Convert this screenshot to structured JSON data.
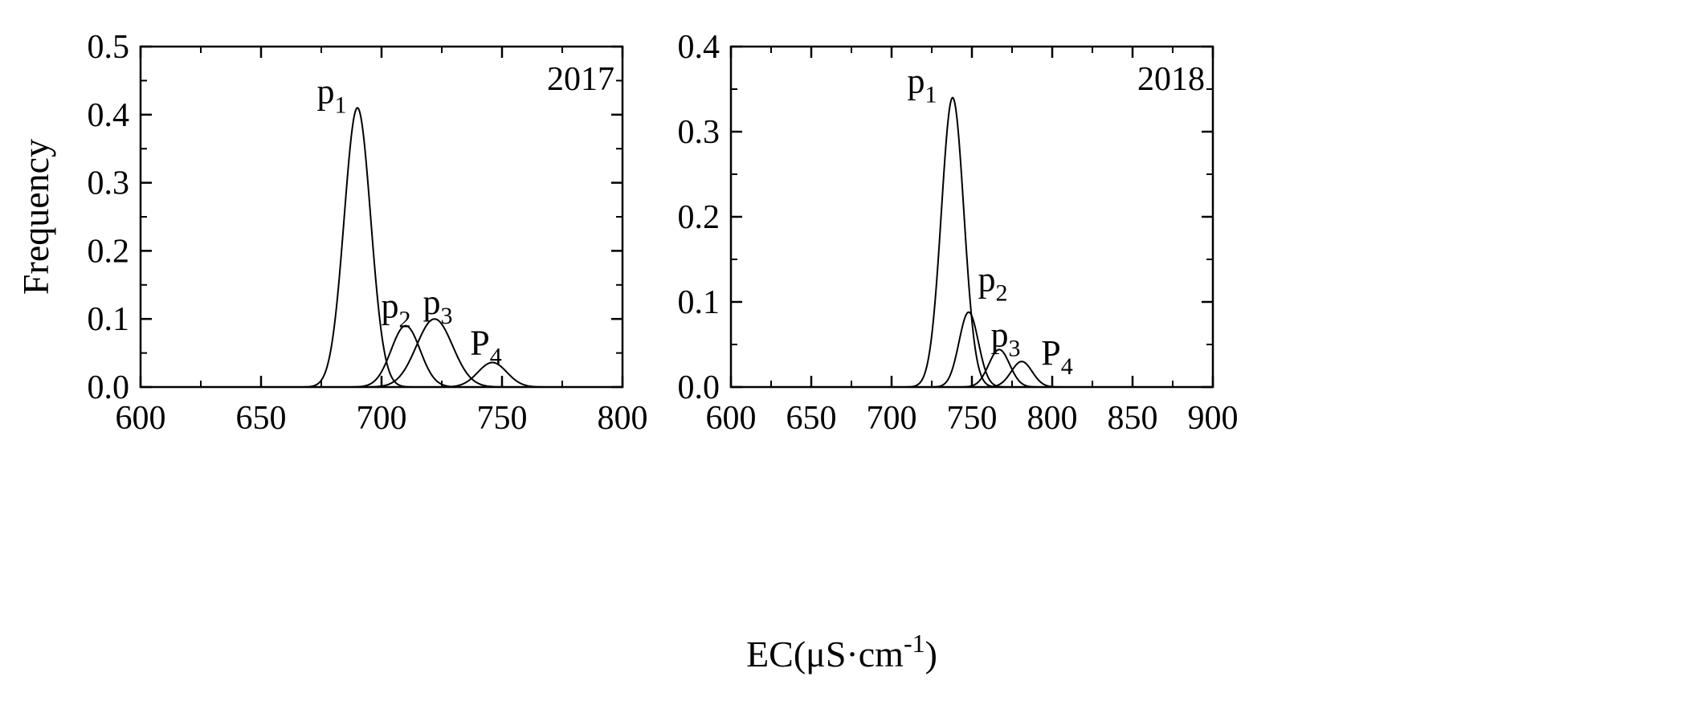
{
  "chart_data": [
    {
      "type": "line",
      "panel": "left",
      "year_label": "2017",
      "xlim": [
        600,
        800
      ],
      "ylim": [
        0,
        0.5
      ],
      "x_ticks": [
        "600",
        "650",
        "700",
        "750",
        "800"
      ],
      "y_ticks": [
        "0.0",
        "0.1",
        "0.2",
        "0.3",
        "0.4",
        "0.5"
      ],
      "ylabel": "Frequency",
      "series": [
        {
          "peak_label": "p",
          "sub": "1",
          "mean": 690,
          "sd": 5.5,
          "peak": 0.41
        },
        {
          "peak_label": "p",
          "sub": "2",
          "mean": 710,
          "sd": 6.0,
          "peak": 0.09
        },
        {
          "peak_label": "p",
          "sub": "3",
          "mean": 722,
          "sd": 7.5,
          "peak": 0.1
        },
        {
          "peak_label": "P",
          "sub": "4",
          "mean": 746,
          "sd": 6.0,
          "peak": 0.036
        }
      ]
    },
    {
      "type": "line",
      "panel": "right",
      "year_label": "2018",
      "xlim": [
        600,
        900
      ],
      "ylim": [
        0,
        0.4
      ],
      "x_ticks": [
        "600",
        "650",
        "700",
        "750",
        "800",
        "850",
        "900"
      ],
      "y_ticks": [
        "0.0",
        "0.1",
        "0.2",
        "0.3",
        "0.4"
      ],
      "series": [
        {
          "peak_label": "p",
          "sub": "1",
          "mean": 738,
          "sd": 7.0,
          "peak": 0.34
        },
        {
          "peak_label": "p",
          "sub": "2",
          "mean": 748,
          "sd": 6.0,
          "peak": 0.088
        },
        {
          "peak_label": "p",
          "sub": "3",
          "mean": 767,
          "sd": 6.5,
          "peak": 0.044
        },
        {
          "peak_label": "P",
          "sub": "4",
          "mean": 781,
          "sd": 6.5,
          "peak": 0.03
        }
      ]
    }
  ],
  "shared_xlabel": {
    "main": "EC(μS·cm",
    "sup": "-1",
    "close": ")"
  }
}
